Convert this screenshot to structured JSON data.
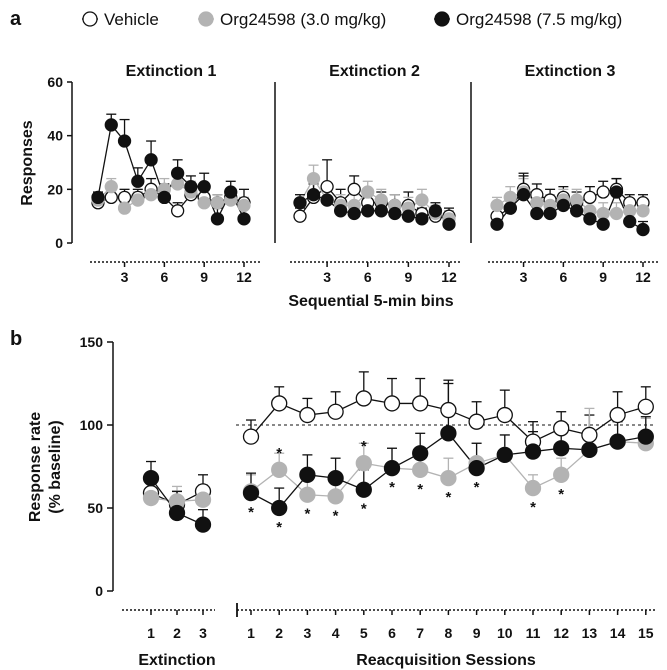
{
  "legend": [
    {
      "label": "Vehicle",
      "fill": "#ffffff",
      "stroke": "#111111"
    },
    {
      "label": "Org24598 (3.0 mg/kg)",
      "fill": "#b3b3b3",
      "stroke": "#b3b3b3"
    },
    {
      "label": "Org24598 (7.5 mg/kg)",
      "fill": "#111111",
      "stroke": "#111111"
    }
  ],
  "panel_a": {
    "letter": "a"
  },
  "panel_b": {
    "letter": "b"
  },
  "chart_data": [
    {
      "type": "line",
      "panel": "a",
      "ylabel": "Responses",
      "xlabel": "Sequential 5-min bins",
      "ylim": [
        0,
        60
      ],
      "yticks": [
        0,
        20,
        40,
        60
      ],
      "xticks": [
        3,
        6,
        9,
        12
      ],
      "subplots": [
        {
          "title": "Extinction 1",
          "x": [
            1,
            2,
            3,
            4,
            5,
            6,
            7,
            8,
            9,
            10,
            11,
            12
          ],
          "series": [
            {
              "values": [
                15,
                17,
                17,
                17,
                20,
                17,
                12,
                18,
                17,
                15,
                17,
                15
              ],
              "err": [
                2,
                3,
                3,
                3,
                4,
                4,
                3,
                4,
                3,
                3,
                3,
                5
              ]
            },
            {
              "values": [
                16,
                21,
                13,
                16,
                18,
                20,
                22,
                19,
                15,
                15,
                16,
                14
              ],
              "err": [
                2,
                3,
                2,
                3,
                3,
                4,
                4,
                4,
                3,
                3,
                3,
                3
              ]
            },
            {
              "values": [
                17,
                44,
                38,
                23,
                31,
                17,
                26,
                21,
                21,
                9,
                19,
                9
              ],
              "err": [
                2,
                4,
                8,
                5,
                7,
                5,
                5,
                4,
                5,
                4,
                4,
                6
              ]
            }
          ]
        },
        {
          "title": "Extinction 2",
          "x": [
            1,
            2,
            3,
            4,
            5,
            6,
            7,
            8,
            9,
            10,
            11,
            12
          ],
          "series": [
            {
              "values": [
                10,
                17,
                21,
                15,
                20,
                15,
                15,
                14,
                14,
                11,
                10,
                10
              ],
              "err": [
                3,
                5,
                10,
                5,
                5,
                4,
                4,
                4,
                5,
                4,
                3,
                3
              ]
            },
            {
              "values": [
                15,
                24,
                16,
                14,
                14,
                19,
                16,
                14,
                13,
                16,
                11,
                9
              ],
              "err": [
                3,
                5,
                5,
                4,
                4,
                4,
                4,
                4,
                4,
                4,
                3,
                3
              ]
            },
            {
              "values": [
                15,
                18,
                16,
                12,
                11,
                12,
                12,
                11,
                10,
                9,
                12,
                7
              ],
              "err": [
                3,
                5,
                5,
                4,
                4,
                4,
                4,
                4,
                4,
                4,
                3,
                3
              ]
            }
          ]
        },
        {
          "title": "Extinction 3",
          "x": [
            1,
            2,
            3,
            4,
            5,
            6,
            7,
            8,
            9,
            10,
            11,
            12
          ],
          "series": [
            {
              "values": [
                10,
                13,
                20,
                18,
                16,
                17,
                15,
                17,
                19,
                20,
                15,
                15
              ],
              "err": [
                3,
                4,
                5,
                4,
                4,
                4,
                4,
                4,
                4,
                4,
                3,
                3
              ]
            },
            {
              "values": [
                14,
                17,
                19,
                15,
                14,
                16,
                16,
                12,
                11,
                11,
                12,
                12
              ],
              "err": [
                3,
                4,
                5,
                4,
                4,
                4,
                4,
                4,
                4,
                4,
                3,
                3
              ]
            },
            {
              "values": [
                7,
                13,
                18,
                11,
                11,
                14,
                12,
                9,
                7,
                19,
                8,
                5
              ],
              "err": [
                3,
                4,
                8,
                4,
                4,
                4,
                4,
                4,
                4,
                5,
                3,
                3
              ]
            }
          ]
        }
      ]
    },
    {
      "type": "line",
      "panel": "b",
      "ylabel": "Response rate (% baseline)",
      "ylim": [
        0,
        150
      ],
      "yticks": [
        0,
        50,
        100,
        150
      ],
      "reference_line": 100,
      "groups": [
        {
          "xlabel": "Extinction",
          "x": [
            1,
            2,
            3
          ],
          "series": [
            {
              "values": [
                59,
                52,
                60
              ],
              "err": [
                9,
                8,
                10
              ]
            },
            {
              "values": [
                56,
                54,
                55
              ],
              "err": [
                9,
                9,
                9
              ]
            },
            {
              "values": [
                68,
                47,
                40
              ],
              "err": [
                10,
                13,
                9
              ]
            }
          ]
        },
        {
          "xlabel": "Reacquisition Sessions",
          "x": [
            1,
            2,
            3,
            4,
            5,
            6,
            7,
            8,
            9,
            10,
            11,
            12,
            13,
            14,
            15
          ],
          "series": [
            {
              "values": [
                93,
                113,
                106,
                108,
                116,
                113,
                113,
                109,
                102,
                106,
                90,
                98,
                94,
                106,
                111
              ],
              "err": [
                10,
                10,
                10,
                12,
                16,
                15,
                15,
                18,
                12,
                15,
                12,
                10,
                12,
                14,
                12
              ]
            },
            {
              "values": [
                60,
                73,
                58,
                57,
                77,
                74,
                73,
                68,
                77,
                82,
                62,
                70,
                85,
                90,
                89
              ],
              "err": [
                10,
                10,
                10,
                10,
                12,
                12,
                12,
                12,
                12,
                12,
                8,
                10,
                25,
                15,
                15
              ]
            },
            {
              "values": [
                59,
                50,
                70,
                68,
                61,
                74,
                83,
                95,
                74,
                82,
                84,
                86,
                85,
                90,
                93
              ],
              "err": [
                12,
                12,
                12,
                12,
                12,
                12,
                12,
                30,
                15,
                12,
                12,
                12,
                12,
                12,
                12
              ]
            }
          ],
          "significance": [
            "*",
            "*",
            "*",
            "*",
            "*",
            "*",
            "*",
            "*",
            "*",
            "",
            "*",
            "*",
            "",
            "",
            ""
          ],
          "significance_gray": [
            "",
            "*",
            "",
            "",
            "*",
            "",
            "",
            "",
            "",
            "",
            "",
            "",
            "",
            "",
            ""
          ]
        }
      ]
    }
  ],
  "labels": {
    "titles": [
      "Extinction 1",
      "Extinction 2",
      "Extinction 3"
    ],
    "a_yticks": [
      "0",
      "20",
      "40",
      "60"
    ],
    "a_xticks": [
      "3",
      "6",
      "9",
      "12"
    ],
    "a_xlabel": "Sequential 5-min bins",
    "a_ylabel": "Responses",
    "b_yticks": [
      "0",
      "50",
      "100",
      "150"
    ],
    "b_ext_ticks": [
      "1",
      "2",
      "3"
    ],
    "b_re_ticks": [
      "1",
      "2",
      "3",
      "4",
      "5",
      "6",
      "7",
      "8",
      "9",
      "10",
      "11",
      "12",
      "13",
      "14",
      "15"
    ],
    "b_ext_label": "Extinction",
    "b_re_label": "Reacquisition Sessions",
    "b_ylabel_1": "Response rate",
    "b_ylabel_2": "(% baseline)",
    "star": "*"
  }
}
